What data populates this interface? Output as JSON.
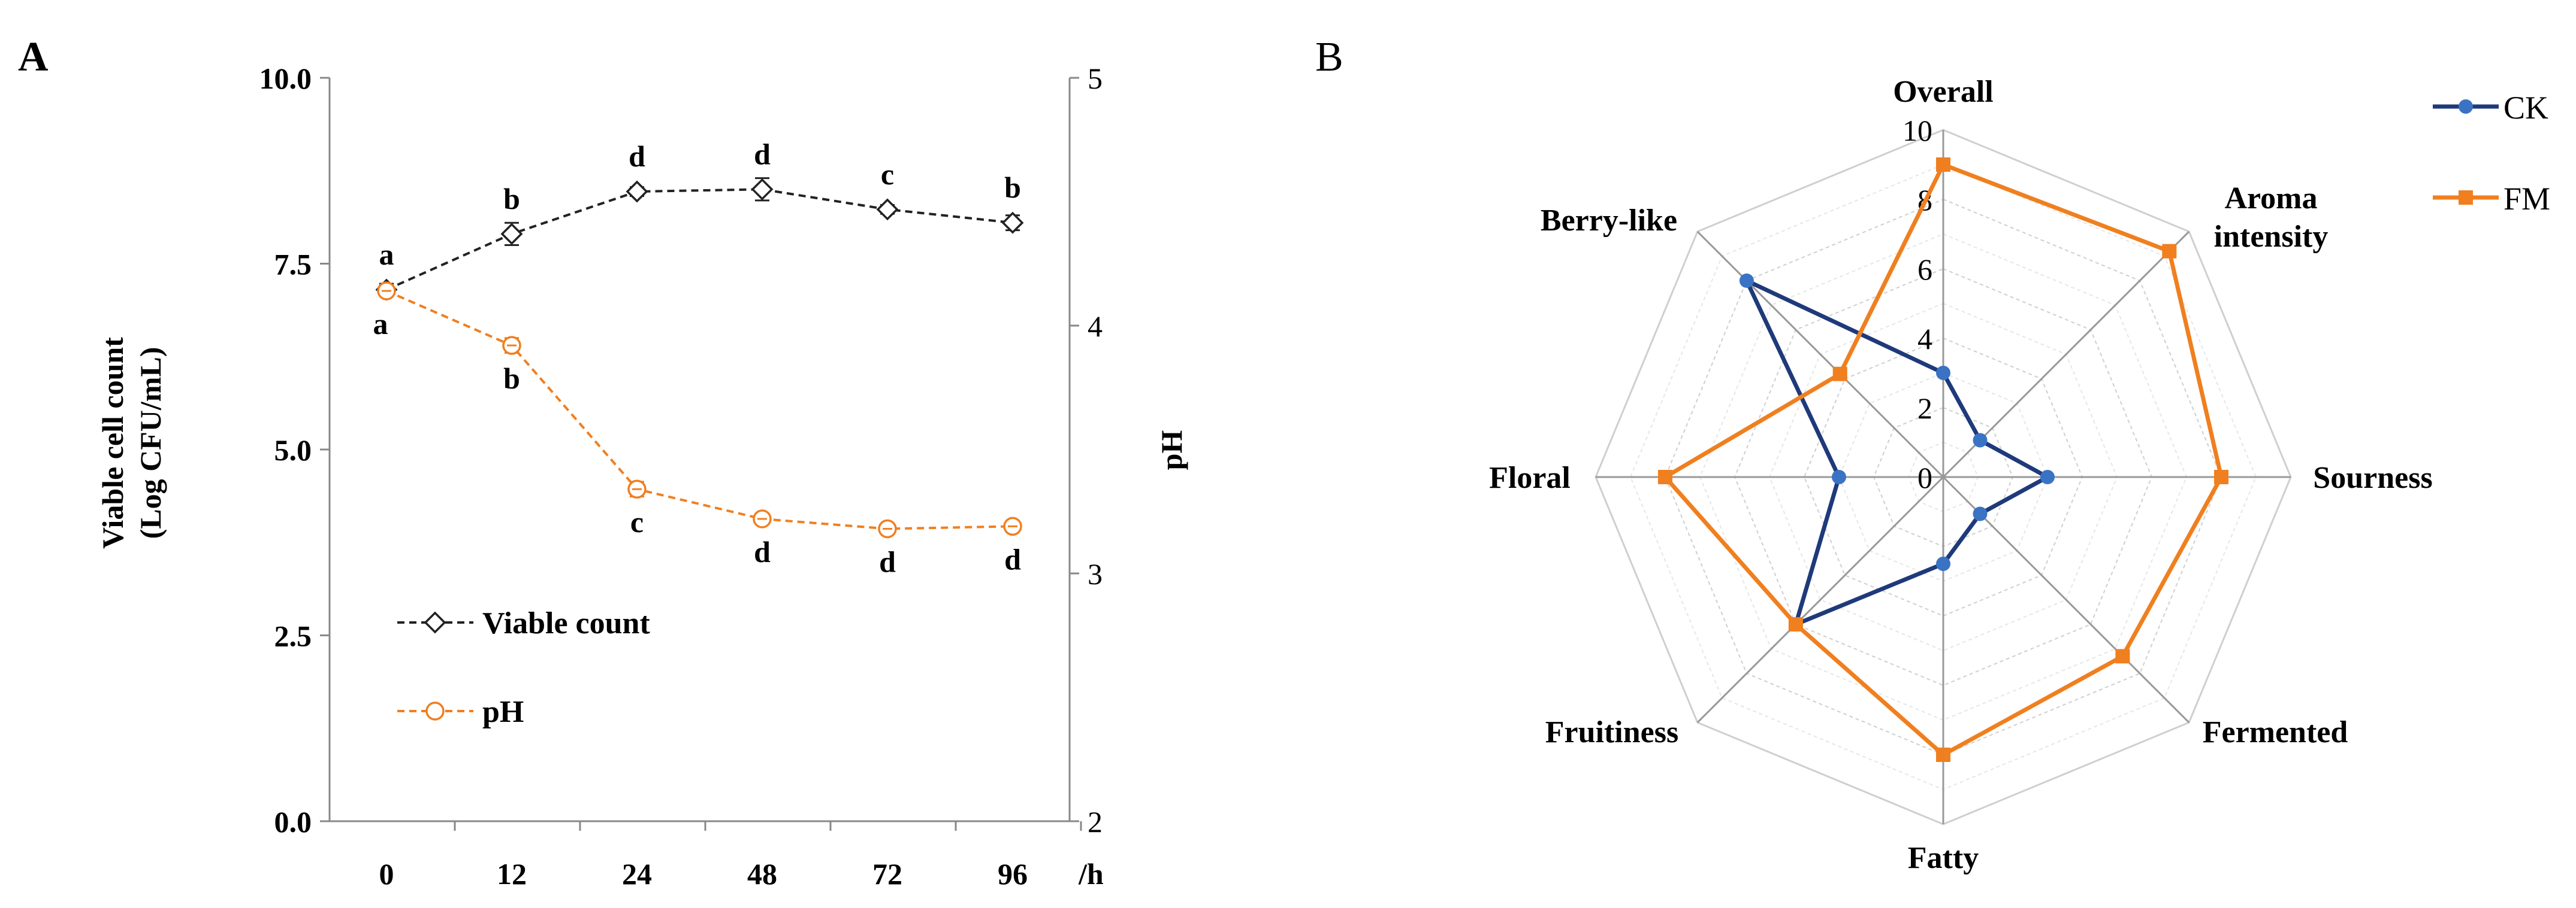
{
  "chart_data": [
    {
      "panel_label": "A",
      "type": "line",
      "x_categories": [
        "0",
        "12",
        "24",
        "48",
        "72",
        "96"
      ],
      "x_unit_label": "/h",
      "y_left": {
        "label_line1": "Viable cell count",
        "label_line2": "(Log CFU/mL)",
        "lim": [
          0,
          10
        ],
        "ticks": [
          "0.0",
          "2.5",
          "5.0",
          "7.5",
          "10.0"
        ]
      },
      "y_right": {
        "label": "pH",
        "lim": [
          2,
          5
        ],
        "ticks": [
          "2",
          "3",
          "4",
          "5"
        ]
      },
      "series": [
        {
          "name": "Viable count",
          "axis": "left",
          "color": "#222222",
          "marker": "diamond",
          "values": [
            7.15,
            7.9,
            8.47,
            8.5,
            8.23,
            8.05
          ],
          "errors": [
            0.08,
            0.15,
            0.06,
            0.15,
            0.06,
            0.1
          ],
          "letters": [
            "a",
            "b",
            "d",
            "d",
            "c",
            "b"
          ]
        },
        {
          "name": "pH",
          "axis": "right",
          "color": "#f07f1f",
          "marker": "circle",
          "values": [
            4.14,
            3.92,
            3.34,
            3.22,
            3.18,
            3.19
          ],
          "errors": [
            0.02,
            0.03,
            0.03,
            0.01,
            0.01,
            0.02
          ],
          "letters": [
            "a",
            "b",
            "c",
            "d",
            "d",
            "d"
          ]
        }
      ]
    },
    {
      "panel_label": "B",
      "type": "radar",
      "axes": [
        "Overall",
        "Aroma intensity",
        "Sourness",
        "Fermented",
        "Fatty",
        "Fruitiness",
        "Floral",
        "Berry-like"
      ],
      "rlim": [
        0,
        10
      ],
      "r_ticks": [
        "0",
        "2",
        "4",
        "6",
        "8",
        "10"
      ],
      "series": [
        {
          "name": "CK",
          "color": "#1f3a7a",
          "marker_color": "#3a73c4",
          "values": [
            3,
            1.5,
            3,
            1.5,
            2.5,
            6,
            3,
            8
          ]
        },
        {
          "name": "FM",
          "color": "#f07f1f",
          "marker_color": "#f07f1f",
          "values": [
            9,
            9.2,
            8,
            7.3,
            8,
            6,
            8,
            4.2
          ]
        }
      ]
    }
  ]
}
